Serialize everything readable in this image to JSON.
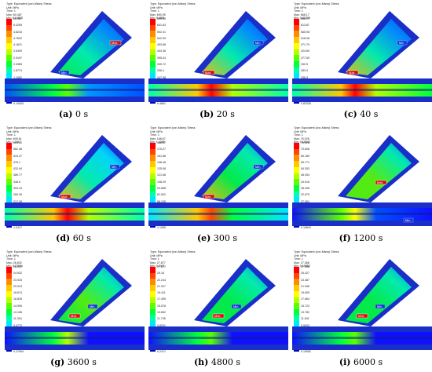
{
  "legend_colors": [
    "#ff0000",
    "#ff4500",
    "#ff8c00",
    "#ffc800",
    "#ffff00",
    "#b4ff00",
    "#5aff00",
    "#00ff3c",
    "#00ffaa",
    "#00e6ff",
    "#0096ff",
    "#0050ff",
    "#1010ff",
    "#0000c8"
  ],
  "panels": [
    {
      "tag": "(a)",
      "time": "0 s",
      "header": [
        "Type: Equivalent (von-Mises) Stress",
        "Unit: MPa",
        "Time: 1",
        "Max: 60.487",
        "Min: 0.10833"
      ],
      "ticks": [
        "60.487",
        "5.4255",
        "4.8243",
        "4.7632",
        "4.1621",
        "3.5409",
        "2.9197",
        "2.3985",
        "1.8774",
        "1.1562",
        "1.4935",
        "0.83065",
        "0.42653",
        "0.10833"
      ],
      "max_label": "Max",
      "min_label": "Min",
      "max_pos": "branch-top",
      "min_pos": "junction",
      "field": {
        "hot_main": 0.25,
        "hot_branch": 0.35,
        "hot_junction": 0.55
      }
    },
    {
      "tag": "(b)",
      "time": "20 s",
      "header": [
        "Type: Equivalent (von-Mises) Stress",
        "Unit: MPa",
        "Time: 1",
        "Max: 690.95",
        "Min: 0.4861"
      ],
      "ticks": [
        "690.95",
        "641.63",
        "592.31",
        "542.99",
        "493.68",
        "444.36",
        "395.04",
        "345.72",
        "296.4",
        "247.08",
        "197.76",
        "148.44",
        "99.122",
        "0.4861"
      ],
      "max_label": "Max",
      "min_label": "Min",
      "max_pos": "junction",
      "min_pos": "branch-top",
      "field": {
        "hot_main": 0.6,
        "hot_branch": 0.35,
        "hot_junction": 1.0
      }
    },
    {
      "tag": "(c)",
      "time": "40 s",
      "header": [
        "Type: Equivalent (von-Mises) Stress",
        "Unit: MPa",
        "Time: 1",
        "Max: 668.17",
        "Min: 0.83336"
      ],
      "ticks": [
        "668.17",
        "613.87",
        "565.98",
        "518.08",
        "471.79",
        "424.69",
        "377.59",
        "330.5",
        "283.4",
        "236.3",
        "189.21",
        "142.11",
        "95.017",
        "0.83336"
      ],
      "max_label": "Max",
      "min_label": "Min",
      "max_pos": "junction",
      "min_pos": "branch-top",
      "field": {
        "hot_main": 0.62,
        "hot_branch": 0.38,
        "hot_junction": 1.0
      }
    },
    {
      "tag": "(d)",
      "time": "60 s",
      "header": [
        "Type: Equivalent (von-Mises) Stress",
        "Unit: MPa",
        "Time: 1",
        "Max: 605.61",
        "Min: 1.2417"
      ],
      "ticks": [
        "605.61",
        "562.48",
        "519.27",
        "476.1",
        "432.94",
        "389.77",
        "346.6",
        "303.43",
        "260.26",
        "217.09",
        "173.92",
        "130.75",
        "87.583",
        "1.2417"
      ],
      "max_label": "Max",
      "min_label": "Min",
      "max_pos": "junction",
      "min_pos": "branch-top",
      "field": {
        "hot_main": 0.6,
        "hot_branch": 0.42,
        "hot_junction": 1.0
      }
    },
    {
      "tag": "(e)",
      "time": "300 s",
      "header": [
        "Type: Equivalent (von-Mises) Stress",
        "Unit: MPa",
        "Time: 1",
        "Max: 188.67",
        "Min: 1.1265"
      ],
      "ticks": [
        "188.67",
        "175.27",
        "161.88",
        "148.48",
        "135.08",
        "121.68",
        "108.29",
        "94.898",
        "81.502",
        "68.105",
        "54.709",
        "41.313",
        "27.917",
        "1.1265"
      ],
      "max_label": "Max",
      "min_label": "Min",
      "max_pos": "junction",
      "min_pos": "branch-top",
      "field": {
        "hot_main": 0.45,
        "hot_branch": 0.5,
        "hot_junction": 0.95
      }
    },
    {
      "tag": "(f)",
      "time": "1200 s",
      "header": [
        "Type: Equivalent (von-Mises) Stress",
        "Unit: MPa",
        "Time: 1",
        "Max: 76.026",
        "Min: 0.16842"
      ],
      "ticks": [
        "76.026",
        "70.606",
        "65.189",
        "59.771",
        "54.353",
        "48.934",
        "43.516",
        "38.098",
        "32.679",
        "27.261",
        "21.843",
        "16.424",
        "11.006",
        "0.16842"
      ],
      "max_label": "Max",
      "min_label": "Min",
      "max_pos": "branch-mid",
      "min_pos": "main-right",
      "field": {
        "hot_main": 0.15,
        "hot_branch": 0.55,
        "hot_junction": 0.7
      }
    },
    {
      "tag": "(g)",
      "time": "3600 s",
      "header": [
        "Type: Equivalent (von-Mises) Stress",
        "Unit: MPa",
        "Time: 1",
        "Max: 26.832",
        "Min: 0.27994"
      ],
      "ticks": [
        "26.832",
        "24.932",
        "23.033",
        "20.513",
        "18.674",
        "16.835",
        "14.995",
        "13.156",
        "11.316",
        "9.4772",
        "7.6378",
        "5.7984",
        "3.959",
        "0.27994"
      ],
      "max_label": "Max",
      "min_label": "Min",
      "max_pos": "branch-low",
      "min_pos": "branch-mid",
      "field": {
        "hot_main": 0.1,
        "hot_branch": 0.55,
        "hot_junction": 0.6
      }
    },
    {
      "tag": "(h)",
      "time": "4800 s",
      "header": [
        "Type: Equivalent (von-Mises) Stress",
        "Unit: MPa",
        "Time: 1",
        "Max: 27.877",
        "Min: 0.2471"
      ],
      "ticks": [
        "27.877",
        "25.16",
        "22.244",
        "21.327",
        "19.411",
        "17.495",
        "15.578",
        "13.662",
        "11.745",
        "9.8291",
        "7.9127",
        "5.9963",
        "4.0799",
        "0.2471"
      ],
      "max_label": "Max",
      "min_label": "Min",
      "max_pos": "branch-low",
      "min_pos": "branch-mid",
      "field": {
        "hot_main": 0.1,
        "hot_branch": 0.5,
        "hot_junction": 0.55
      }
    },
    {
      "tag": "(i)",
      "time": "6000 s",
      "header": [
        "Type: Equivalent (von-Mises) Stress",
        "Unit: MPa",
        "Time: 1",
        "Max: 27.368",
        "Min: 0.19552"
      ],
      "ticks": [
        "27.368",
        "25.427",
        "23.487",
        "21.546",
        "19.605",
        "17.664",
        "15.723",
        "13.782",
        "11.841",
        "9.9003",
        "7.9594",
        "6.0185",
        "4.0775",
        "0.19552"
      ],
      "max_label": "Max",
      "min_label": "Min",
      "max_pos": "branch-low",
      "min_pos": "branch-mid",
      "field": {
        "hot_main": 0.1,
        "hot_branch": 0.5,
        "hot_junction": 0.55
      }
    }
  ]
}
